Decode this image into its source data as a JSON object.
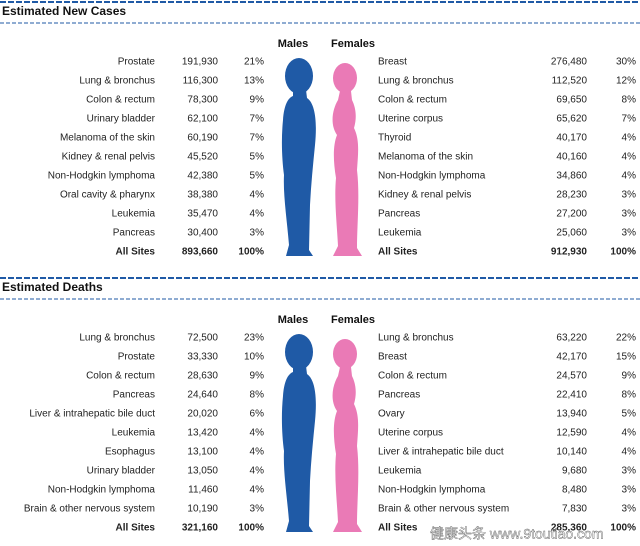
{
  "sections": [
    {
      "title": "Estimated New Cases",
      "males_label": "Males",
      "females_label": "Females",
      "males": [
        {
          "site": "Prostate",
          "count": "191,930",
          "percent": "21%"
        },
        {
          "site": "Lung & bronchus",
          "count": "116,300",
          "percent": "13%"
        },
        {
          "site": "Colon & rectum",
          "count": "78,300",
          "percent": "9%"
        },
        {
          "site": "Urinary bladder",
          "count": "62,100",
          "percent": "7%"
        },
        {
          "site": "Melanoma of the skin",
          "count": "60,190",
          "percent": "7%"
        },
        {
          "site": "Kidney & renal pelvis",
          "count": "45,520",
          "percent": "5%"
        },
        {
          "site": "Non-Hodgkin lymphoma",
          "count": "42,380",
          "percent": "5%"
        },
        {
          "site": "Oral cavity & pharynx",
          "count": "38,380",
          "percent": "4%"
        },
        {
          "site": "Leukemia",
          "count": "35,470",
          "percent": "4%"
        },
        {
          "site": "Pancreas",
          "count": "30,400",
          "percent": "3%"
        },
        {
          "site": "All Sites",
          "count": "893,660",
          "percent": "100%"
        }
      ],
      "females": [
        {
          "site": "Breast",
          "count": "276,480",
          "percent": "30%"
        },
        {
          "site": "Lung & bronchus",
          "count": "112,520",
          "percent": "12%"
        },
        {
          "site": "Colon & rectum",
          "count": "69,650",
          "percent": "8%"
        },
        {
          "site": "Uterine corpus",
          "count": "65,620",
          "percent": "7%"
        },
        {
          "site": "Thyroid",
          "count": "40,170",
          "percent": "4%"
        },
        {
          "site": "Melanoma of the skin",
          "count": "40,160",
          "percent": "4%"
        },
        {
          "site": "Non-Hodgkin lymphoma",
          "count": "34,860",
          "percent": "4%"
        },
        {
          "site": "Kidney & renal pelvis",
          "count": "28,230",
          "percent": "3%"
        },
        {
          "site": "Pancreas",
          "count": "27,200",
          "percent": "3%"
        },
        {
          "site": "Leukemia",
          "count": "25,060",
          "percent": "3%"
        },
        {
          "site": "All Sites",
          "count": "912,930",
          "percent": "100%"
        }
      ]
    },
    {
      "title": "Estimated Deaths",
      "males_label": "Males",
      "females_label": "Females",
      "males": [
        {
          "site": "Lung & bronchus",
          "count": "72,500",
          "percent": "23%"
        },
        {
          "site": "Prostate",
          "count": "33,330",
          "percent": "10%"
        },
        {
          "site": "Colon & rectum",
          "count": "28,630",
          "percent": "9%"
        },
        {
          "site": "Pancreas",
          "count": "24,640",
          "percent": "8%"
        },
        {
          "site": "Liver & intrahepatic bile duct",
          "count": "20,020",
          "percent": "6%"
        },
        {
          "site": "Leukemia",
          "count": "13,420",
          "percent": "4%"
        },
        {
          "site": "Esophagus",
          "count": "13,100",
          "percent": "4%"
        },
        {
          "site": "Urinary bladder",
          "count": "13,050",
          "percent": "4%"
        },
        {
          "site": "Non-Hodgkin lymphoma",
          "count": "11,460",
          "percent": "4%"
        },
        {
          "site": "Brain & other nervous system",
          "count": "10,190",
          "percent": "3%"
        },
        {
          "site": "All Sites",
          "count": "321,160",
          "percent": "100%"
        }
      ],
      "females": [
        {
          "site": "Lung & bronchus",
          "count": "63,220",
          "percent": "22%"
        },
        {
          "site": "Breast",
          "count": "42,170",
          "percent": "15%"
        },
        {
          "site": "Colon & rectum",
          "count": "24,570",
          "percent": "9%"
        },
        {
          "site": "Pancreas",
          "count": "22,410",
          "percent": "8%"
        },
        {
          "site": "Ovary",
          "count": "13,940",
          "percent": "5%"
        },
        {
          "site": "Uterine corpus",
          "count": "12,590",
          "percent": "4%"
        },
        {
          "site": "Liver & intrahepatic bile duct",
          "count": "10,140",
          "percent": "4%"
        },
        {
          "site": "Leukemia",
          "count": "9,680",
          "percent": "3%"
        },
        {
          "site": "Non-Hodgkin lymphoma",
          "count": "8,480",
          "percent": "3%"
        },
        {
          "site": "Brain & other nervous system",
          "count": "7,830",
          "percent": "3%"
        },
        {
          "site": "All Sites",
          "count": "285,360",
          "percent": "100%"
        }
      ]
    }
  ],
  "watermark": "健康头条 www.9toutiao.com"
}
